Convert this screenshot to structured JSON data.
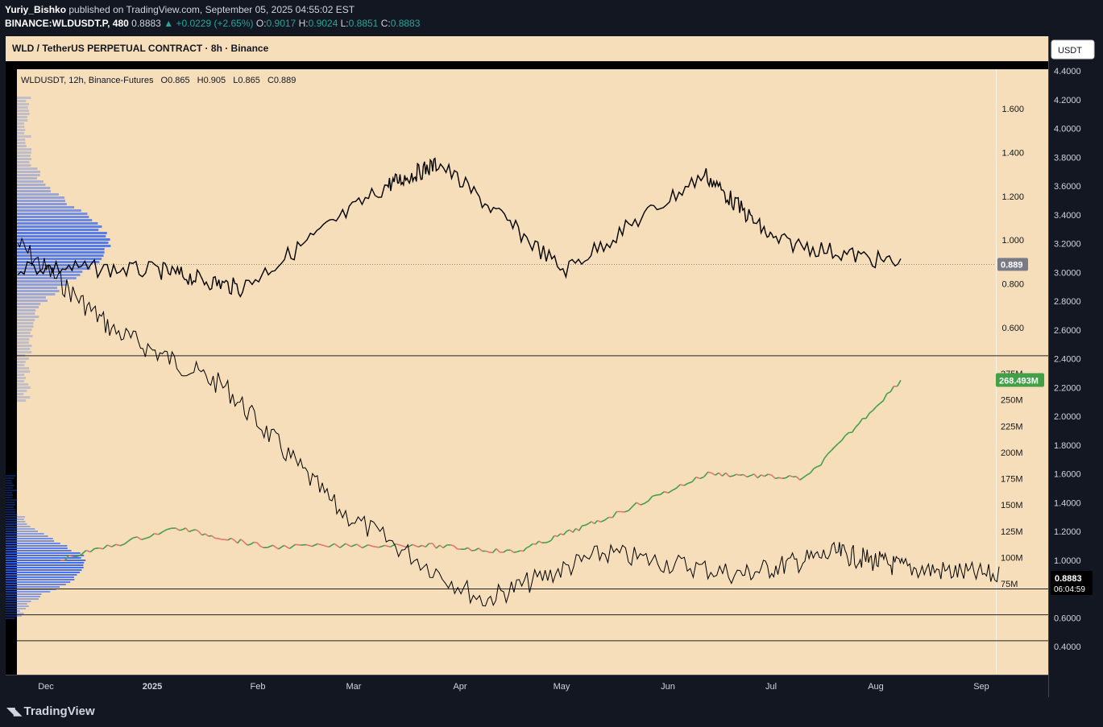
{
  "header": {
    "line1_author": "Yuriy_Bishko",
    "line1_rest": "published on TradingView.com, September 05, 2025 04:55:02 EST",
    "symbol": "BINANCE:WLDUSDT.P, 480",
    "last": "0.8883",
    "change_arrow": "▲",
    "change": "+0.0229 (+2.65%)",
    "o_label": "O:",
    "o": "0.9017",
    "h_label": "H:",
    "h": "0.9024",
    "l_label": "L:",
    "l": "0.8851",
    "c_label": "C:",
    "c": "0.8883"
  },
  "panel_title": "WLD / TetherUS PERPETUAL CONTRACT · 8h · Binance",
  "inner_legend": {
    "symbol": "WLDUSDT, 12h, Binance-Futures",
    "o": "O0.865",
    "h": "H0.905",
    "l": "L0.865",
    "c": "C0.889"
  },
  "currency_button": "USDT",
  "brand": "TradingView",
  "colors": {
    "background": "#131722",
    "plot_bg": "#f5deb9",
    "candles": "#000000",
    "volume_profile": "#2962ff",
    "oi_up": "#43a047",
    "oi_down": "#e57373",
    "oi_label": "#43a047"
  },
  "chart_data": [
    {
      "type": "line",
      "name": "outer",
      "description_source": "BINANCE:WLDUSDT.P 8h price, lower line",
      "y_axis_ticks": [
        "4.4000",
        "4.2000",
        "4.0000",
        "3.8000",
        "3.6000",
        "3.4000",
        "3.2000",
        "3.0000",
        "2.8000",
        "2.6000",
        "2.4000",
        "2.2000",
        "2.0000",
        "1.8000",
        "1.6000",
        "1.4000",
        "1.2000",
        "1.0000",
        "0.8000",
        "0.6000",
        "0.4000"
      ],
      "x_axis_ticks": [
        "Dec",
        "2025",
        "Feb",
        "Mar",
        "Apr",
        "May",
        "Jun",
        "Jul",
        "Aug",
        "Sep"
      ],
      "ylim": [
        0.4,
        4.4
      ],
      "x": [
        "Dec",
        "2025",
        "Feb",
        "Mar",
        "Apr",
        "May",
        "Jun",
        "Jul",
        "Aug",
        "Sep"
      ],
      "y": [
        3.2,
        2.6,
        2.2,
        1.35,
        0.72,
        1.05,
        0.9,
        1.05,
        0.95,
        0.89
      ],
      "last_label": "0.8883",
      "countdown": "06:04:59",
      "horizontal_levels": [
        2.42,
        0.8,
        0.62,
        0.44
      ]
    },
    {
      "type": "line",
      "name": "inner",
      "description_source": "WLDUSDT 12h Binance-Futures, upper line",
      "y_axis_ticks": [
        "1.600",
        "1.400",
        "1.200",
        "1.000",
        "0.800",
        "0.600"
      ],
      "ylim": [
        0.4,
        1.7
      ],
      "x": [
        "Dec",
        "2025",
        "Feb",
        "Mar",
        "Apr",
        "May",
        "Jun",
        "Jul",
        "Aug"
      ],
      "y": [
        0.88,
        0.86,
        0.78,
        1.25,
        1.35,
        0.86,
        1.3,
        1.0,
        0.89
      ],
      "last_label": "0.889"
    },
    {
      "type": "line",
      "name": "open-interest",
      "y_axis_ticks": [
        "275M",
        "250M",
        "225M",
        "200M",
        "175M",
        "150M",
        "125M",
        "100M",
        "75M"
      ],
      "ylim": [
        75,
        275
      ],
      "x": [
        "Dec",
        "2025",
        "Feb",
        "Mar",
        "Apr",
        "May",
        "Jun",
        "Jul",
        "Aug"
      ],
      "y": [
        98,
        128,
        110,
        112,
        105,
        135,
        180,
        175,
        268.493
      ],
      "last_label": "268.493M"
    }
  ]
}
